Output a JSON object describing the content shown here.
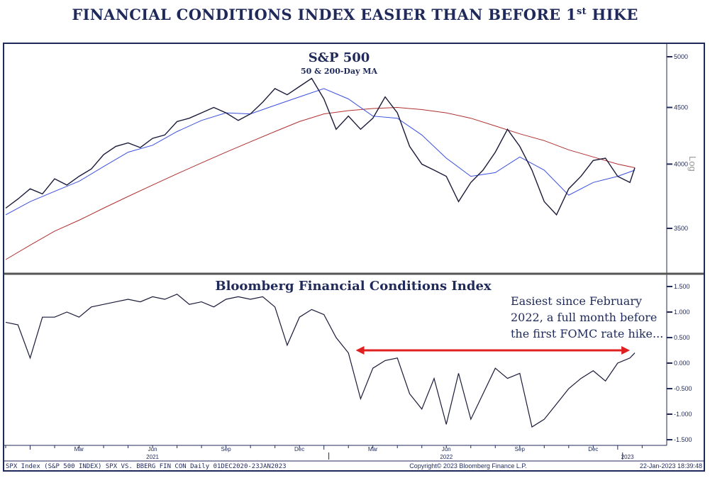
{
  "title_main": "FINANCIAL CONDITIONS INDEX EASIER THAN BEFORE 1",
  "title_sup": "st",
  "title_end": " HIKE",
  "chart_data": [
    {
      "type": "line",
      "title": "S&P 500",
      "subtitle": "50 & 200-Day MA",
      "scale": "log",
      "scale_label": "Log",
      "yticks": [
        3500,
        4000,
        4500,
        5000
      ],
      "ylim": [
        3250,
        5100
      ],
      "x_unit": "months since 01-Dec-2020",
      "series": [
        {
          "name": "S&P 500",
          "color": "#1a1a3a",
          "x": [
            0,
            0.5,
            1,
            1.5,
            2,
            2.5,
            3,
            3.5,
            4,
            4.5,
            5,
            5.5,
            6,
            6.5,
            7,
            7.5,
            8,
            8.5,
            9,
            9.5,
            10,
            10.5,
            11,
            11.5,
            12,
            12.5,
            13,
            13.5,
            14,
            14.5,
            15,
            15.5,
            16,
            16.5,
            17,
            17.5,
            18,
            18.5,
            19,
            19.5,
            20,
            20.5,
            21,
            21.5,
            22,
            22.5,
            23,
            23.5,
            24,
            24.5,
            25,
            25.5,
            25.7
          ],
          "values": [
            3650,
            3720,
            3800,
            3760,
            3880,
            3830,
            3900,
            3960,
            4080,
            4150,
            4180,
            4140,
            4220,
            4250,
            4370,
            4400,
            4450,
            4500,
            4450,
            4380,
            4440,
            4550,
            4680,
            4620,
            4700,
            4780,
            4580,
            4300,
            4420,
            4300,
            4400,
            4600,
            4450,
            4150,
            4000,
            3950,
            3900,
            3700,
            3850,
            3950,
            4100,
            4300,
            4150,
            3950,
            3700,
            3600,
            3800,
            3900,
            4030,
            4050,
            3900,
            3850,
            3970
          ]
        },
        {
          "name": "50-Day MA",
          "color": "#3a4fe0",
          "x": [
            0,
            1,
            2,
            3,
            4,
            5,
            6,
            7,
            8,
            9,
            10,
            11,
            12,
            13,
            14,
            15,
            16,
            17,
            18,
            19,
            20,
            21,
            22,
            23,
            24,
            25,
            25.7
          ],
          "values": [
            3600,
            3700,
            3780,
            3860,
            3980,
            4100,
            4160,
            4280,
            4380,
            4450,
            4440,
            4520,
            4600,
            4680,
            4580,
            4420,
            4400,
            4250,
            4050,
            3900,
            3930,
            4060,
            3950,
            3750,
            3850,
            3900,
            3950
          ]
        },
        {
          "name": "200-Day MA",
          "color": "#b03030",
          "x": [
            0,
            1,
            2,
            3,
            4,
            5,
            6,
            7,
            8,
            9,
            10,
            11,
            12,
            13,
            14,
            15,
            16,
            17,
            18,
            19,
            20,
            21,
            22,
            23,
            24,
            25,
            25.7
          ],
          "values": [
            3280,
            3380,
            3480,
            3560,
            3650,
            3740,
            3830,
            3920,
            4010,
            4100,
            4190,
            4280,
            4370,
            4440,
            4470,
            4490,
            4500,
            4480,
            4450,
            4400,
            4330,
            4260,
            4200,
            4120,
            4060,
            4000,
            3970
          ]
        }
      ]
    },
    {
      "type": "line",
      "title": "Bloomberg Financial Conditions Index",
      "yticks": [
        1.5,
        1.0,
        0.5,
        0.0,
        -0.5,
        -1.0,
        -1.5
      ],
      "ytick_labels": [
        "1.500",
        "1.000",
        "0.500",
        "0.000",
        "-0.500",
        "-1.000",
        "-1.500"
      ],
      "ylim": [
        -1.6,
        1.6
      ],
      "series": [
        {
          "name": "BFCI",
          "color": "#1a1a3a",
          "x": [
            0,
            0.5,
            1,
            1.5,
            2,
            2.5,
            3,
            3.5,
            4,
            4.5,
            5,
            5.5,
            6,
            6.5,
            7,
            7.5,
            8,
            8.5,
            9,
            9.5,
            10,
            10.5,
            11,
            11.5,
            12,
            12.5,
            13,
            13.5,
            14,
            14.5,
            15,
            15.5,
            16,
            16.5,
            17,
            17.5,
            18,
            18.5,
            19,
            19.5,
            20,
            20.5,
            21,
            21.5,
            22,
            22.5,
            23,
            23.5,
            24,
            24.5,
            25,
            25.5,
            25.7
          ],
          "values": [
            0.8,
            0.75,
            0.1,
            0.9,
            0.9,
            1.0,
            0.9,
            1.1,
            1.15,
            1.2,
            1.25,
            1.2,
            1.3,
            1.25,
            1.35,
            1.15,
            1.2,
            1.1,
            1.25,
            1.3,
            1.25,
            1.3,
            1.1,
            0.35,
            0.9,
            1.05,
            0.95,
            0.5,
            0.2,
            -0.7,
            -0.1,
            0.05,
            0.1,
            -0.6,
            -0.9,
            -0.3,
            -1.2,
            -0.2,
            -1.1,
            -0.6,
            -0.1,
            -0.3,
            -0.2,
            -1.25,
            -1.1,
            -0.8,
            -0.5,
            -0.3,
            -0.15,
            -0.35,
            0.0,
            0.1,
            0.2
          ]
        }
      ],
      "annotation": {
        "lines": [
          "Easiest since February",
          "2022, a full month before",
          "the first FOMC rate hike..."
        ],
        "arrow_from_x": 14.3,
        "arrow_to_x": 25.5,
        "arrow_y": 0.25,
        "arrow_color": "#e02020"
      }
    },
    {
      "type": "x-axis",
      "months": [
        {
          "label": "Mar",
          "t": 3
        },
        {
          "label": "Jun",
          "t": 6
        },
        {
          "label": "Sep",
          "t": 9
        },
        {
          "label": "Dec",
          "t": 12
        },
        {
          "label": "Mar",
          "t": 15
        },
        {
          "label": "Jun",
          "t": 18
        },
        {
          "label": "Sep",
          "t": 21
        },
        {
          "label": "Dec",
          "t": 24
        }
      ],
      "years": [
        {
          "label": "2021",
          "t": 6
        },
        {
          "label": "2022",
          "t": 18
        },
        {
          "label": "2023",
          "t": 25.4
        }
      ]
    }
  ],
  "footer": {
    "left": "SPX Index (S&P 500 INDEX) SPX VS. BBERG FIN CON  Daily 01DEC2020-23JAN2023",
    "center": "Copyright© 2023 Bloomberg Finance L.P.",
    "right": "22-Jan-2023 18:39:48"
  }
}
